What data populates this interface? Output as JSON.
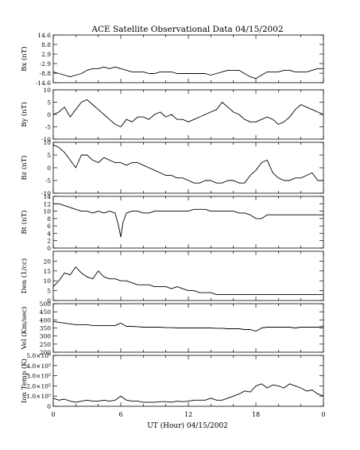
{
  "chart_data": {
    "type": "line",
    "title": "ACE Satellite Observational Data   04/15/2002",
    "xlabel": "UT (Hour)  04/15/2002",
    "x_range": [
      0,
      24
    ],
    "x_ticks": [
      "0",
      "6",
      "12",
      "18",
      "0"
    ],
    "panels": [
      {
        "id": "bx",
        "ylabel": "Bx (nT)",
        "ylim": [
          -14.6,
          14.6
        ],
        "y_ticks": [
          {
            "v": 14.6,
            "label": "14.6"
          },
          {
            "v": 8.8,
            "label": "8.8"
          },
          {
            "v": 2.9,
            "label": "2.9"
          },
          {
            "v": -2.9,
            "label": "-2.9"
          },
          {
            "v": -8.8,
            "label": "-8.8"
          },
          {
            "v": -14.6,
            "label": "-14.6"
          }
        ],
        "series": [
          {
            "x": [
              0,
              0.5,
              1,
              1.5,
              2,
              2.5,
              3,
              3.5,
              4,
              4.5,
              5,
              5.5,
              6,
              6.5,
              7,
              7.5,
              8,
              8.5,
              9,
              9.5,
              10,
              10.5,
              11,
              11.5,
              12,
              12.5,
              13,
              13.5,
              14,
              14.5,
              15,
              15.5,
              16,
              16.5,
              17,
              17.5,
              18,
              18.5,
              19,
              19.5,
              20,
              20.5,
              21,
              21.5,
              22,
              22.5,
              23,
              23.5,
              24
            ],
            "y": [
              -8,
              -9,
              -10,
              -11,
              -10,
              -9,
              -7,
              -6,
              -6,
              -5,
              -6,
              -5,
              -6,
              -7,
              -8,
              -8,
              -8,
              -9,
              -9,
              -8,
              -8,
              -8,
              -9,
              -9,
              -9,
              -9,
              -9,
              -9,
              -10,
              -9,
              -8,
              -7,
              -7,
              -7,
              -9,
              -11,
              -12,
              -10,
              -8,
              -8,
              -8,
              -7,
              -7,
              -8,
              -8,
              -8,
              -7,
              -6,
              -6
            ]
          }
        ]
      },
      {
        "id": "by",
        "ylabel": "By (nT)",
        "ylim": [
          -10,
          10
        ],
        "y_ticks": [
          {
            "v": 10,
            "label": "10"
          },
          {
            "v": 5,
            "label": "5"
          },
          {
            "v": 0,
            "label": "0"
          },
          {
            "v": -5,
            "label": "-5"
          },
          {
            "v": -10,
            "label": "-10"
          }
        ],
        "series": [
          {
            "x": [
              0,
              0.5,
              1,
              1.5,
              2,
              2.5,
              3,
              3.5,
              4,
              4.5,
              5,
              5.5,
              6,
              6.5,
              7,
              7.5,
              8,
              8.5,
              9,
              9.5,
              10,
              10.5,
              11,
              11.5,
              12,
              12.5,
              13,
              13.5,
              14,
              14.5,
              15,
              15.5,
              16,
              16.5,
              17,
              17.5,
              18,
              18.5,
              19,
              19.5,
              20,
              20.5,
              21,
              21.5,
              22,
              22.5,
              23,
              23.5,
              24
            ],
            "y": [
              0,
              1,
              3,
              -1,
              2,
              5,
              6,
              4,
              2,
              0,
              -2,
              -4,
              -5,
              -2,
              -3,
              -1,
              -1,
              -2,
              0,
              1,
              -1,
              0,
              -2,
              -2,
              -3,
              -2,
              -1,
              0,
              1,
              2,
              5,
              3,
              1,
              0,
              -2,
              -3,
              -3,
              -2,
              -1,
              -2,
              -4,
              -3,
              -1,
              2,
              4,
              3,
              2,
              1,
              0
            ]
          }
        ]
      },
      {
        "id": "bz",
        "ylabel": "Bz (nT)",
        "ylim": [
          -10,
          10
        ],
        "y_ticks": [
          {
            "v": 10,
            "label": "10"
          },
          {
            "v": 5,
            "label": "5"
          },
          {
            "v": 0,
            "label": "0"
          },
          {
            "v": -5,
            "label": "-5"
          },
          {
            "v": -10,
            "label": "-10"
          }
        ],
        "series": [
          {
            "x": [
              0,
              0.5,
              1,
              1.5,
              2,
              2.5,
              3,
              3.5,
              4,
              4.5,
              5,
              5.5,
              6,
              6.5,
              7,
              7.5,
              8,
              8.5,
              9,
              9.5,
              10,
              10.5,
              11,
              11.5,
              12,
              12.5,
              13,
              13.5,
              14,
              14.5,
              15,
              15.5,
              16,
              16.5,
              17,
              17.5,
              18,
              18.5,
              19,
              19.5,
              20,
              20.5,
              21,
              21.5,
              22,
              22.5,
              23,
              23.5,
              24
            ],
            "y": [
              9,
              8,
              6,
              3,
              0,
              5,
              5,
              3,
              2,
              4,
              3,
              2,
              2,
              1,
              2,
              2,
              1,
              0,
              -1,
              -2,
              -3,
              -3,
              -4,
              -4,
              -5,
              -6,
              -6,
              -5,
              -5,
              -6,
              -6,
              -5,
              -5,
              -6,
              -6,
              -3,
              -1,
              2,
              3,
              -2,
              -4,
              -5,
              -5,
              -4,
              -4,
              -3,
              -2,
              -5,
              -5
            ]
          }
        ]
      },
      {
        "id": "bt",
        "ylabel": "Bt (nT)",
        "ylim": [
          0,
          14
        ],
        "y_ticks": [
          {
            "v": 14,
            "label": "14"
          },
          {
            "v": 12,
            "label": "12"
          },
          {
            "v": 10,
            "label": "10"
          },
          {
            "v": 8,
            "label": "8"
          },
          {
            "v": 6,
            "label": "6"
          },
          {
            "v": 4,
            "label": "4"
          },
          {
            "v": 2,
            "label": "2"
          },
          {
            "v": 0,
            "label": "0"
          }
        ],
        "series": [
          {
            "x": [
              0,
              0.5,
              1,
              1.5,
              2,
              2.5,
              3,
              3.5,
              4,
              4.5,
              5,
              5.5,
              5.8,
              6,
              6.2,
              6.5,
              7,
              7.5,
              8,
              8.5,
              9,
              9.5,
              10,
              10.5,
              11,
              11.5,
              12,
              12.5,
              13,
              13.5,
              14,
              14.5,
              15,
              15.5,
              16,
              16.5,
              17,
              17.5,
              18,
              18.5,
              19,
              19.5,
              20,
              20.5,
              21,
              21.5,
              22,
              22.5,
              23,
              23.5,
              24
            ],
            "y": [
              12,
              12,
              11.5,
              11,
              10.5,
              10,
              10,
              9.5,
              10,
              9.5,
              10,
              9.5,
              6,
              3,
              7,
              9.5,
              10,
              10,
              9.5,
              9.5,
              10,
              10,
              10,
              10,
              10,
              10,
              10,
              10.5,
              10.5,
              10.5,
              10,
              10,
              10,
              10,
              10,
              9.5,
              9.5,
              9,
              8,
              8,
              9,
              9,
              9,
              9,
              9,
              9,
              9,
              9,
              9,
              9,
              9
            ]
          }
        ]
      },
      {
        "id": "den",
        "ylabel": "Den (1/cc)",
        "ylim": [
          0,
          25
        ],
        "y_ticks": [
          {
            "v": 20,
            "label": "20"
          },
          {
            "v": 15,
            "label": "15"
          },
          {
            "v": 10,
            "label": "10"
          },
          {
            "v": 5,
            "label": "5"
          },
          {
            "v": 0,
            "label": "0"
          }
        ],
        "series": [
          {
            "x": [
              0,
              0.5,
              1,
              1.5,
              2,
              2.5,
              3,
              3.5,
              4,
              4.5,
              5,
              5.5,
              6,
              6.5,
              7,
              7.5,
              8,
              8.5,
              9,
              9.5,
              10,
              10.5,
              11,
              11.5,
              12,
              12.5,
              13,
              13.5,
              14,
              14.5,
              15,
              15.5,
              16,
              16.5,
              17,
              17.5,
              18,
              18.5,
              19,
              19.5,
              20,
              20.5,
              21,
              21.5,
              22,
              22.5,
              23,
              23.5,
              24
            ],
            "y": [
              7,
              10,
              14,
              13,
              17,
              14,
              12,
              11,
              15,
              12,
              11,
              11,
              10,
              10,
              9,
              8,
              8,
              8,
              7,
              7,
              7,
              6,
              7,
              6,
              5,
              5,
              4,
              4,
              4,
              3,
              3,
              3,
              3,
              3,
              3,
              3,
              3,
              3,
              3,
              3,
              3,
              3,
              3,
              3,
              3,
              3,
              3,
              3,
              3
            ]
          }
        ]
      },
      {
        "id": "vel",
        "ylabel": "Vel (Km/sec)",
        "ylim": [
          200,
          500
        ],
        "y_ticks": [
          {
            "v": 500,
            "label": "500"
          },
          {
            "v": 450,
            "label": "450"
          },
          {
            "v": 400,
            "label": "400"
          },
          {
            "v": 350,
            "label": "350"
          },
          {
            "v": 300,
            "label": "300"
          },
          {
            "v": 250,
            "label": "250"
          },
          {
            "v": 200,
            "label": "200"
          }
        ],
        "series": [
          {
            "x": [
              0,
              0.5,
              1,
              1.5,
              2,
              2.5,
              3,
              3.5,
              4,
              4.5,
              5,
              5.5,
              6,
              6.5,
              7,
              7.5,
              8,
              8.5,
              9,
              9.5,
              10,
              10.5,
              11,
              11.5,
              12,
              12.5,
              13,
              13.5,
              14,
              14.5,
              15,
              15.5,
              16,
              16.5,
              17,
              17.5,
              18,
              18.5,
              19,
              19.5,
              20,
              20.5,
              21,
              21.5,
              22,
              22.5,
              23,
              23.5,
              24
            ],
            "y": [
              390,
              385,
              380,
              375,
              370,
              370,
              370,
              365,
              365,
              365,
              365,
              365,
              380,
              360,
              360,
              358,
              355,
              355,
              355,
              355,
              352,
              352,
              350,
              350,
              350,
              350,
              350,
              350,
              350,
              348,
              348,
              345,
              345,
              345,
              340,
              340,
              330,
              350,
              355,
              355,
              355,
              355,
              355,
              350,
              355,
              355,
              355,
              355,
              360
            ]
          }
        ]
      },
      {
        "id": "temp",
        "ylabel": "Ion Temp (K)",
        "ylim": [
          0,
          500000
        ],
        "y_ticks": [
          {
            "v": 500000,
            "label": "5.0×10⁵"
          },
          {
            "v": 400000,
            "label": "4.0×10⁵"
          },
          {
            "v": 300000,
            "label": "3.0×10⁵"
          },
          {
            "v": 200000,
            "label": "2.0×10⁵"
          },
          {
            "v": 100000,
            "label": "1.0×10⁵"
          },
          {
            "v": 0,
            "label": "0"
          }
        ],
        "series": [
          {
            "x": [
              0,
              0.5,
              1,
              1.5,
              2,
              2.5,
              3,
              3.5,
              4,
              4.5,
              5,
              5.5,
              6,
              6.5,
              7,
              7.5,
              8,
              8.5,
              9,
              9.5,
              10,
              10.5,
              11,
              11.5,
              12,
              12.5,
              13,
              13.5,
              14,
              14.5,
              15,
              15.5,
              16,
              16.5,
              17,
              17.5,
              18,
              18.5,
              19,
              19.5,
              20,
              20.5,
              21,
              21.5,
              22,
              22.5,
              23,
              23.5,
              24
            ],
            "y": [
              80000,
              60000,
              70000,
              50000,
              40000,
              50000,
              60000,
              50000,
              50000,
              60000,
              50000,
              60000,
              100000,
              60000,
              50000,
              50000,
              40000,
              40000,
              40000,
              45000,
              45000,
              40000,
              50000,
              45000,
              50000,
              60000,
              60000,
              60000,
              80000,
              60000,
              60000,
              80000,
              100000,
              120000,
              150000,
              140000,
              200000,
              220000,
              180000,
              210000,
              200000,
              180000,
              220000,
              200000,
              180000,
              150000,
              160000,
              120000,
              100000
            ]
          }
        ]
      }
    ]
  }
}
